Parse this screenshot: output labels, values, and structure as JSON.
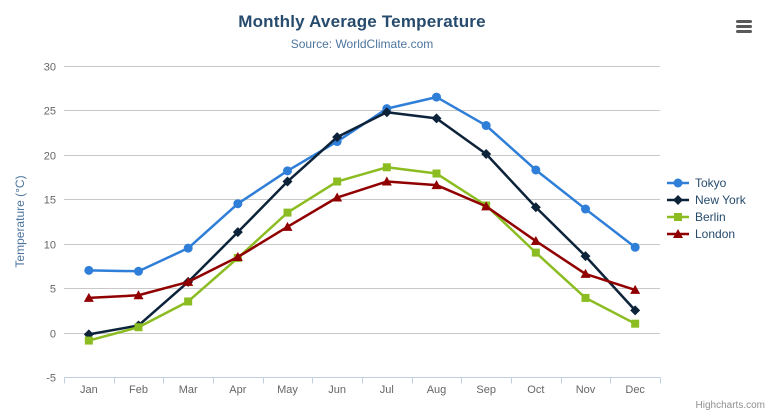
{
  "header": {
    "title": "Monthly Average Temperature",
    "subtitle": "Source: WorldClimate.com"
  },
  "export_menu": {
    "icon": "hamburger-icon",
    "tooltip": "Chart context menu"
  },
  "chart_data": {
    "type": "line",
    "title": "Monthly Average Temperature",
    "subtitle": "Source: WorldClimate.com",
    "categories": [
      "Jan",
      "Feb",
      "Mar",
      "Apr",
      "May",
      "Jun",
      "Jul",
      "Aug",
      "Sep",
      "Oct",
      "Nov",
      "Dec"
    ],
    "xlabel": "",
    "ylabel": "Temperature (°C)",
    "ylim": [
      -5,
      30
    ],
    "y_tick_interval": 5,
    "grid": true,
    "legend_position": "right",
    "series": [
      {
        "name": "Tokyo",
        "color": "#2f7ed8",
        "marker": "circle",
        "values": [
          7.0,
          6.9,
          9.5,
          14.5,
          18.2,
          21.5,
          25.2,
          26.5,
          23.3,
          18.3,
          13.9,
          9.6
        ]
      },
      {
        "name": "New York",
        "color": "#0d233a",
        "marker": "diamond",
        "values": [
          -0.2,
          0.8,
          5.7,
          11.3,
          17.0,
          22.0,
          24.8,
          24.1,
          20.1,
          14.1,
          8.6,
          2.5
        ]
      },
      {
        "name": "Berlin",
        "color": "#8bbc21",
        "marker": "square",
        "values": [
          -0.9,
          0.6,
          3.5,
          8.4,
          13.5,
          17.0,
          18.6,
          17.9,
          14.3,
          9.0,
          3.9,
          1.0
        ]
      },
      {
        "name": "London",
        "color": "#910000",
        "marker": "triangle",
        "values": [
          3.9,
          4.2,
          5.7,
          8.5,
          11.9,
          15.2,
          17.0,
          16.6,
          14.2,
          10.3,
          6.6,
          4.8
        ]
      }
    ],
    "colors": {
      "title": "#274b6d",
      "subtitle": "#4d759e",
      "ylabel": "#4d759e",
      "axis_labels": "#666666",
      "gridline": "#c8c8c8",
      "x_axis_line": "#c0d0e0",
      "legend_text": "#274b6d"
    }
  },
  "credit": {
    "text": "Highcharts.com"
  }
}
